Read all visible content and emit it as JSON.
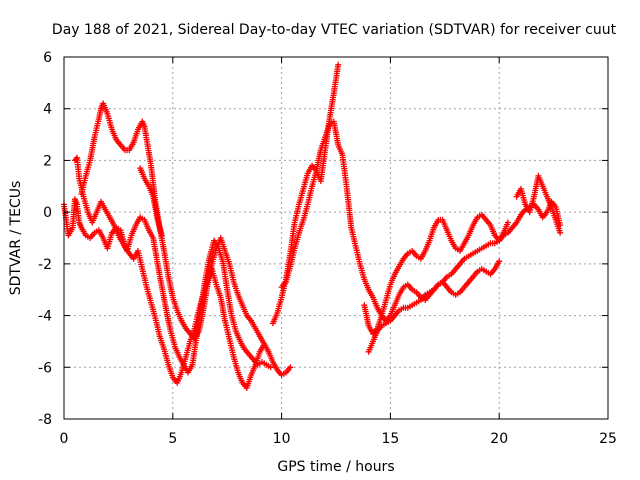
{
  "chart_data": {
    "type": "scatter",
    "title": "Day 188 of 2021, Sidereal Day-to-day VTEC variation (SDTVAR) for receiver cuut",
    "xlabel": "GPS time / hours",
    "ylabel": "SDTVAR / TECUs",
    "xlim": [
      0,
      25
    ],
    "ylim": [
      -8,
      6
    ],
    "xticks": [
      0,
      5,
      10,
      15,
      20,
      25
    ],
    "yticks": [
      -8,
      -6,
      -4,
      -2,
      0,
      2,
      4,
      6
    ],
    "grid": true,
    "marker": "+",
    "series": [
      {
        "name": "SDTVAR",
        "color": "#ff0000",
        "tracks": [
          {
            "x": [
              0.0,
              0.2,
              0.4,
              0.5,
              0.6,
              0.7,
              0.8,
              1.0,
              1.2,
              1.4,
              1.6,
              1.8,
              2.0,
              2.2,
              2.4,
              2.6,
              2.8,
              3.0,
              3.2,
              3.4,
              3.6,
              3.8,
              4.0,
              4.2,
              4.4,
              4.6,
              4.8,
              5.0,
              5.2,
              5.4,
              5.6,
              5.8,
              6.0,
              6.2,
              6.4,
              6.6,
              6.8,
              7.0,
              7.2,
              7.4,
              7.6,
              7.8,
              8.0,
              8.2,
              8.4,
              8.6,
              8.8,
              9.0,
              9.2
            ],
            "y": [
              0.3,
              -0.9,
              -0.6,
              0.5,
              0.3,
              -0.4,
              -0.6,
              -0.9,
              -1.0,
              -0.8,
              -0.7,
              -1.0,
              -1.4,
              -0.8,
              -0.6,
              -0.7,
              -1.3,
              -1.6,
              -1.8,
              -1.5,
              -2.2,
              -2.9,
              -3.5,
              -4.1,
              -4.8,
              -5.3,
              -5.9,
              -6.4,
              -6.6,
              -6.2,
              -5.6,
              -5.0,
              -4.5,
              -3.8,
              -3.2,
              -2.6,
              -2.2,
              -2.8,
              -3.3,
              -4.2,
              -4.9,
              -5.6,
              -6.2,
              -6.6,
              -6.8,
              -6.3,
              -5.9,
              -5.4,
              -5.1
            ]
          },
          {
            "x": [
              0.5,
              0.6,
              0.7,
              0.9,
              1.1,
              1.3,
              1.5,
              1.7,
              1.9,
              2.1,
              2.3,
              2.5,
              2.7,
              2.9,
              3.1,
              3.3,
              3.5,
              3.7,
              3.9,
              4.1,
              4.3,
              4.5,
              4.7,
              4.9,
              5.1,
              5.3,
              5.5,
              5.7,
              5.9,
              6.1,
              6.3,
              6.5,
              6.7,
              6.9,
              7.1,
              7.3,
              7.5,
              7.7,
              7.9,
              8.1,
              8.3,
              8.5,
              8.7,
              8.9,
              9.1,
              9.3,
              9.5
            ],
            "y": [
              2.0,
              2.1,
              1.3,
              0.6,
              0.0,
              -0.4,
              0.0,
              0.4,
              0.1,
              -0.2,
              -0.5,
              -0.9,
              -1.2,
              -1.5,
              -0.9,
              -0.5,
              -0.2,
              -0.3,
              -0.7,
              -1.0,
              -2.0,
              -2.9,
              -3.8,
              -4.6,
              -5.2,
              -5.6,
              -5.9,
              -6.2,
              -5.9,
              -4.8,
              -3.6,
              -2.6,
              -1.7,
              -1.1,
              -1.4,
              -1.9,
              -3.0,
              -4.0,
              -4.6,
              -5.0,
              -5.3,
              -5.5,
              -5.7,
              -5.9,
              -5.8,
              -5.9,
              -6.0
            ]
          },
          {
            "x": [
              0.8,
              1.0,
              1.2,
              1.4,
              1.6,
              1.7,
              1.8,
              2.0,
              2.2,
              2.4,
              2.6,
              2.8,
              3.0,
              3.2,
              3.4,
              3.6,
              3.7,
              3.8,
              4.0,
              4.2,
              4.4,
              4.6,
              4.8,
              5.0,
              5.2,
              5.4,
              5.6,
              5.8,
              6.0,
              6.2,
              6.4,
              6.6,
              6.8,
              7.0,
              7.2,
              7.4,
              7.6,
              7.8,
              8.0,
              8.2,
              8.4,
              8.6,
              8.8,
              9.0,
              9.2,
              9.4,
              9.6,
              9.8,
              10.0,
              10.2,
              10.4
            ],
            "y": [
              0.7,
              1.4,
              2.0,
              2.9,
              3.6,
              4.0,
              4.2,
              3.8,
              3.2,
              2.8,
              2.6,
              2.4,
              2.4,
              2.7,
              3.2,
              3.5,
              3.3,
              2.8,
              1.8,
              0.4,
              -0.6,
              -1.5,
              -2.5,
              -3.3,
              -3.8,
              -4.2,
              -4.5,
              -4.7,
              -4.9,
              -4.6,
              -3.8,
              -2.8,
              -2.0,
              -1.4,
              -1.0,
              -1.5,
              -2.0,
              -2.7,
              -3.2,
              -3.6,
              -4.0,
              -4.2,
              -4.5,
              -4.8,
              -5.1,
              -5.4,
              -5.8,
              -6.1,
              -6.3,
              -6.2,
              -6.0
            ]
          },
          {
            "x": [
              3.5,
              3.7,
              3.9,
              4.1,
              4.3,
              4.5
            ],
            "y": [
              1.7,
              1.3,
              1.0,
              0.6,
              -0.3,
              -0.9
            ]
          },
          {
            "x": [
              9.6,
              9.8,
              10.0,
              10.2,
              10.4,
              10.6,
              10.8,
              11.0,
              11.2,
              11.4,
              11.6,
              11.8,
              12.0,
              12.2,
              12.4,
              12.6
            ],
            "y": [
              -4.3,
              -3.9,
              -3.3,
              -2.6,
              -1.6,
              -0.4,
              0.3,
              0.9,
              1.5,
              1.8,
              1.6,
              1.2,
              2.4,
              3.6,
              4.6,
              5.7
            ]
          },
          {
            "x": [
              10.0,
              10.2,
              10.4,
              10.6,
              10.8,
              11.0,
              11.2,
              11.4,
              11.6,
              11.8,
              12.0,
              12.2,
              12.4,
              12.6,
              12.8,
              13.0,
              13.2,
              13.4,
              13.6,
              13.8,
              14.0,
              14.2,
              14.4,
              14.6,
              14.8,
              15.0,
              15.2,
              15.4,
              15.6,
              15.8,
              16.0,
              16.2,
              16.4,
              16.6,
              16.8,
              17.0,
              17.2,
              17.4,
              17.6,
              17.8,
              18.0,
              18.2,
              18.4,
              18.6,
              18.8,
              19.0,
              19.2,
              19.4,
              19.6,
              19.8,
              20.0
            ],
            "y": [
              -2.9,
              -2.7,
              -2.1,
              -1.4,
              -0.8,
              -0.3,
              0.3,
              1.0,
              1.6,
              2.4,
              2.9,
              3.4,
              3.5,
              2.6,
              2.2,
              0.9,
              -0.6,
              -1.3,
              -2.0,
              -2.6,
              -3.0,
              -3.3,
              -3.7,
              -4.0,
              -4.2,
              -4.0,
              -3.6,
              -3.2,
              -2.9,
              -2.8,
              -3.0,
              -3.1,
              -3.3,
              -3.4,
              -3.2,
              -3.0,
              -2.8,
              -2.7,
              -2.9,
              -3.1,
              -3.2,
              -3.1,
              -2.9,
              -2.7,
              -2.5,
              -2.3,
              -2.2,
              -2.3,
              -2.4,
              -2.2,
              -1.9
            ]
          },
          {
            "x": [
              13.8,
              14.0,
              14.2,
              14.4,
              14.6,
              14.8,
              15.0,
              15.2,
              15.4,
              15.6,
              15.8,
              16.0,
              16.2,
              16.4,
              16.6,
              16.8,
              17.0,
              17.2,
              17.4,
              17.6,
              17.8,
              18.0,
              18.2,
              18.4,
              18.6,
              18.8,
              19.0,
              19.2,
              19.4,
              19.6,
              19.8,
              20.0,
              20.2,
              20.4
            ],
            "y": [
              -3.6,
              -4.4,
              -4.7,
              -4.5,
              -4.0,
              -3.4,
              -2.8,
              -2.4,
              -2.1,
              -1.8,
              -1.6,
              -1.5,
              -1.7,
              -1.8,
              -1.5,
              -1.1,
              -0.6,
              -0.3,
              -0.3,
              -0.7,
              -1.1,
              -1.4,
              -1.5,
              -1.2,
              -0.9,
              -0.5,
              -0.2,
              -0.1,
              -0.3,
              -0.5,
              -0.9,
              -1.1,
              -0.8,
              -0.4
            ]
          },
          {
            "x": [
              14.0,
              14.2,
              14.4,
              14.6,
              14.8,
              15.0,
              15.2,
              15.4,
              15.6,
              15.8,
              16.0,
              16.2,
              16.4,
              16.6,
              16.8,
              17.0,
              17.2,
              17.4,
              17.6,
              17.8,
              18.0,
              18.2,
              18.4,
              18.6,
              18.8,
              19.0,
              19.2,
              19.4,
              19.6,
              19.8,
              20.0,
              20.2,
              20.4,
              20.6,
              20.8,
              21.0,
              21.2,
              21.4,
              21.6,
              21.8,
              22.0,
              22.2,
              22.4,
              22.6,
              22.8
            ],
            "y": [
              -5.4,
              -5.0,
              -4.6,
              -4.4,
              -4.3,
              -4.2,
              -4.0,
              -3.8,
              -3.7,
              -3.7,
              -3.6,
              -3.5,
              -3.4,
              -3.2,
              -3.1,
              -3.0,
              -2.8,
              -2.7,
              -2.5,
              -2.4,
              -2.2,
              -2.0,
              -1.8,
              -1.7,
              -1.6,
              -1.5,
              -1.4,
              -1.3,
              -1.2,
              -1.2,
              -1.1,
              -0.9,
              -0.8,
              -0.6,
              -0.4,
              -0.1,
              0.1,
              0.2,
              0.3,
              0.1,
              -0.2,
              0.0,
              0.4,
              0.2,
              -0.5
            ]
          },
          {
            "x": [
              20.8,
              21.0,
              21.2,
              21.4,
              21.6,
              21.8,
              22.0,
              22.2,
              22.4,
              22.6,
              22.8
            ],
            "y": [
              0.6,
              0.9,
              0.3,
              0.0,
              0.6,
              1.4,
              1.0,
              0.6,
              0.2,
              -0.3,
              -0.8
            ]
          }
        ]
      }
    ]
  }
}
